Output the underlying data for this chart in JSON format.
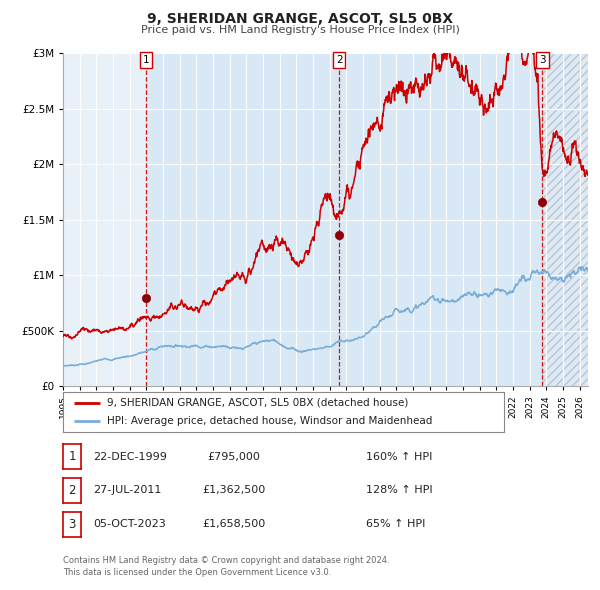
{
  "title": "9, SHERIDAN GRANGE, ASCOT, SL5 0BX",
  "subtitle": "Price paid vs. HM Land Registry's House Price Index (HPI)",
  "ylim": [
    0,
    3000000
  ],
  "xlim_start": 1995.0,
  "xlim_end": 2026.5,
  "bg_color": "#ffffff",
  "plot_bg_color": "#e8f0f8",
  "grid_color": "#ffffff",
  "red_line_color": "#cc0000",
  "blue_line_color": "#7aaed6",
  "purchase_dates": [
    1999.97,
    2011.57,
    2023.76
  ],
  "purchase_prices": [
    795000,
    1362500,
    1658500
  ],
  "purchase_labels": [
    "1",
    "2",
    "3"
  ],
  "vline_color": "#cc0000",
  "legend_entries": [
    "9, SHERIDAN GRANGE, ASCOT, SL5 0BX (detached house)",
    "HPI: Average price, detached house, Windsor and Maidenhead"
  ],
  "table_rows": [
    {
      "num": "1",
      "date": "22-DEC-1999",
      "price": "£795,000",
      "hpi": "160% ↑ HPI"
    },
    {
      "num": "2",
      "date": "27-JUL-2011",
      "price": "£1,362,500",
      "hpi": "128% ↑ HPI"
    },
    {
      "num": "3",
      "date": "05-OCT-2023",
      "price": "£1,658,500",
      "hpi": "65% ↑ HPI"
    }
  ],
  "footer": "Contains HM Land Registry data © Crown copyright and database right 2024.\nThis data is licensed under the Open Government Licence v3.0.",
  "ytick_labels": [
    "£0",
    "£500K",
    "£1M",
    "£1.5M",
    "£2M",
    "£2.5M",
    "£3M"
  ],
  "ytick_values": [
    0,
    500000,
    1000000,
    1500000,
    2000000,
    2500000,
    3000000
  ],
  "xtick_years": [
    1995,
    1996,
    1997,
    1998,
    1999,
    2000,
    2001,
    2002,
    2003,
    2004,
    2005,
    2006,
    2007,
    2008,
    2009,
    2010,
    2011,
    2012,
    2013,
    2014,
    2015,
    2016,
    2017,
    2018,
    2019,
    2020,
    2021,
    2022,
    2023,
    2024,
    2025,
    2026
  ]
}
